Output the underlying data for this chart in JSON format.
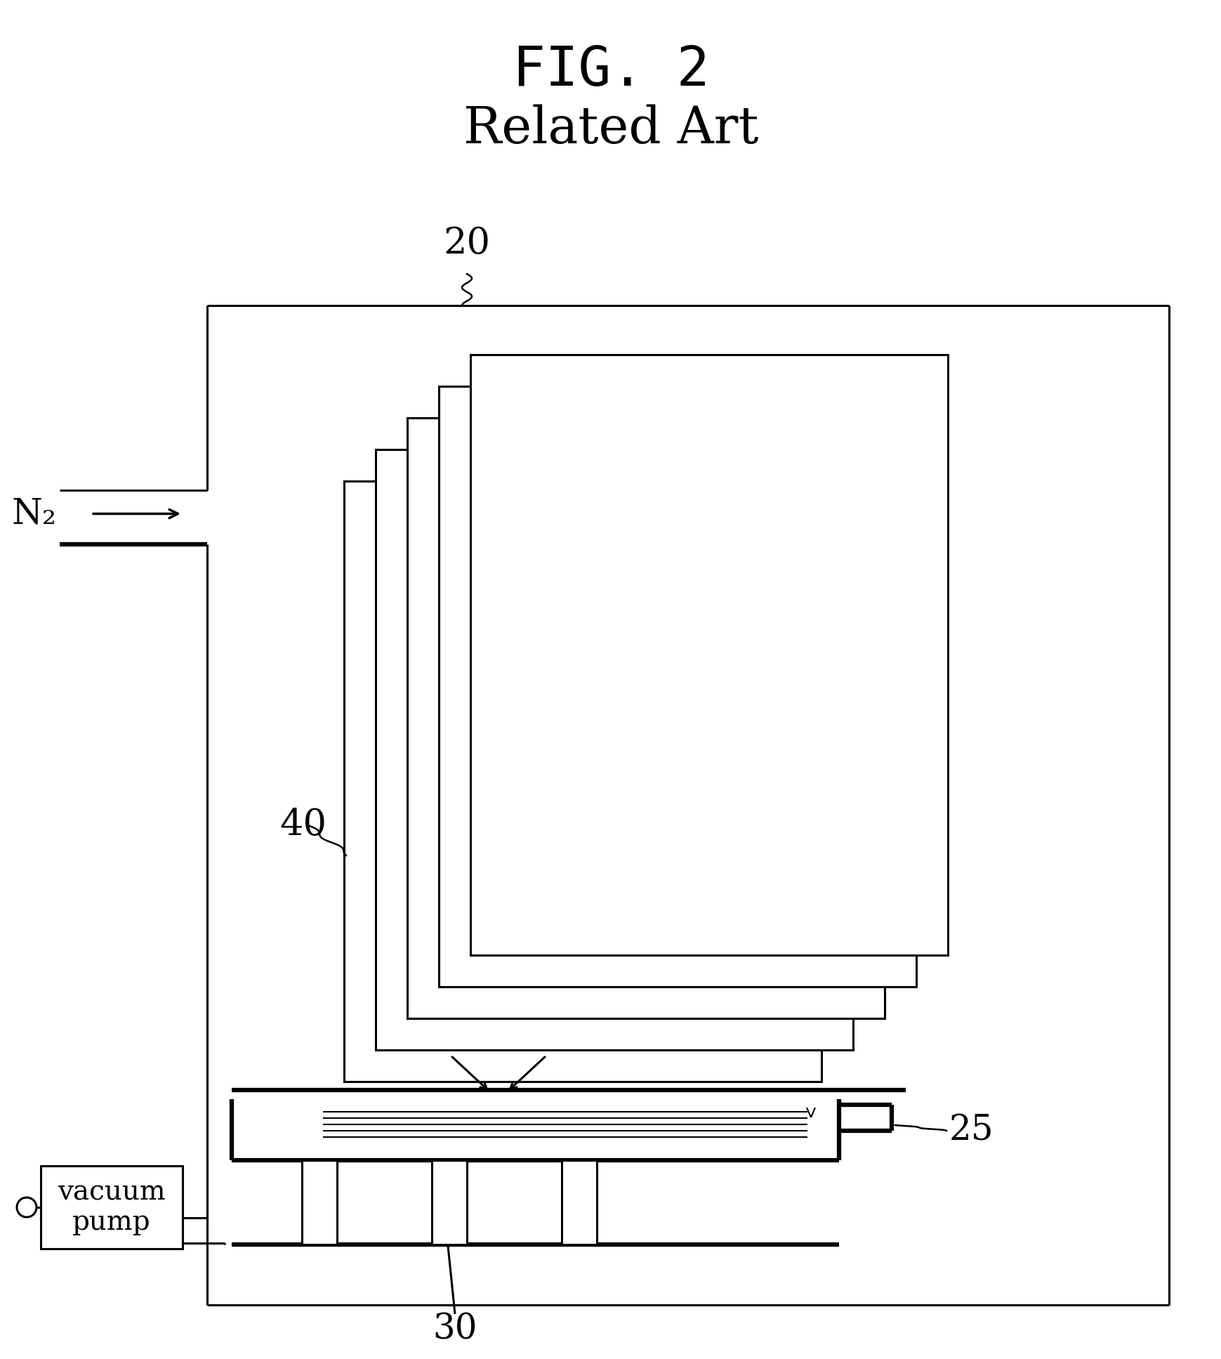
{
  "title_line1": "FIG. 2",
  "title_line2": "Related Art",
  "bg_color": "#ffffff",
  "line_color": "#000000",
  "label_20": "20",
  "label_25": "25",
  "label_30": "30",
  "label_40": "40",
  "label_n2": "N₂",
  "label_vp": "vacuum\npump"
}
